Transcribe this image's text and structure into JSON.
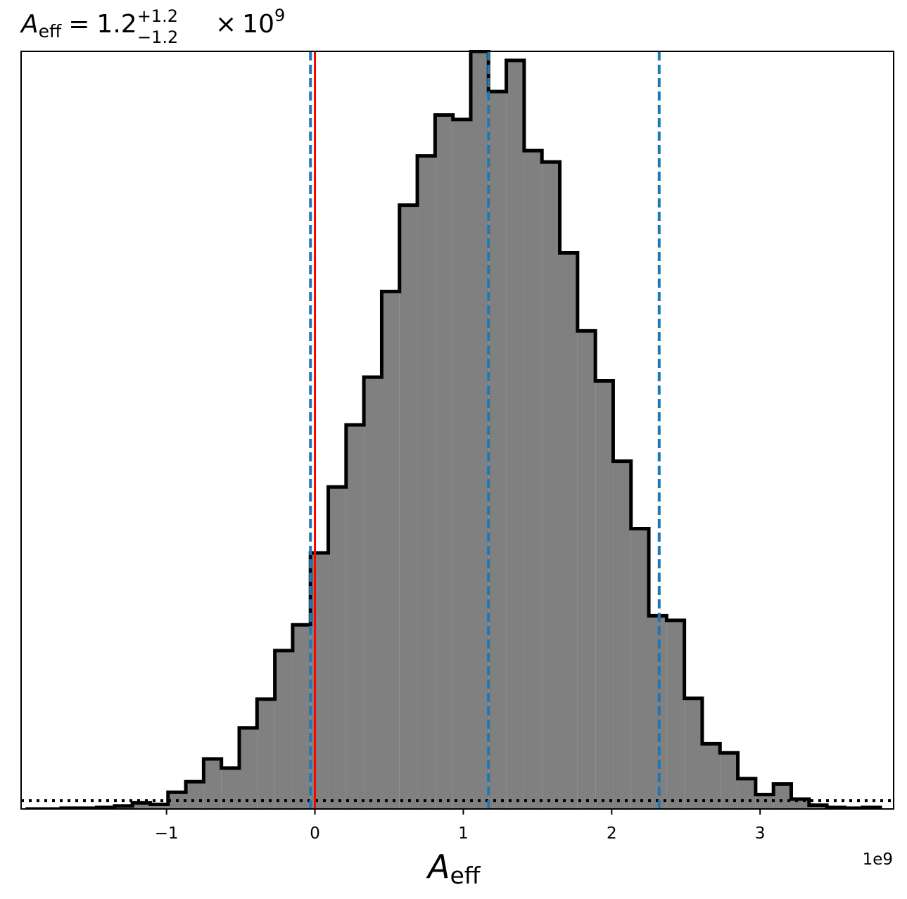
{
  "chart_data": {
    "type": "histogram",
    "title": {
      "symbol": "A",
      "subscript": "eff",
      "equals": "=",
      "value": "1.2",
      "upper_error": "+1.2",
      "lower_error": "−1.2",
      "times": "×",
      "base": "10",
      "exponent": "9"
    },
    "xlabel": {
      "symbol": "A",
      "subscript": "eff"
    },
    "offset_label": "1e9",
    "xlim": [
      -1.98,
      3.9
    ],
    "ylim": [
      0,
      1.0
    ],
    "xticks": [
      -1,
      0,
      1,
      2,
      3
    ],
    "xtick_labels": [
      "−1",
      "0",
      "1",
      "2",
      "3"
    ],
    "bin_edges": [
      -1.95,
      -1.83,
      -1.71,
      -1.59,
      -1.47,
      -1.35,
      -1.23,
      -1.11,
      -0.99,
      -0.87,
      -0.75,
      -0.63,
      -0.51,
      -0.39,
      -0.27,
      -0.15,
      -0.03,
      0.09,
      0.21,
      0.33,
      0.45,
      0.57,
      0.69,
      0.81,
      0.93,
      1.05,
      1.17,
      1.29,
      1.41,
      1.53,
      1.65,
      1.77,
      1.89,
      2.01,
      2.13,
      2.25,
      2.37,
      2.49,
      2.61,
      2.73,
      2.85,
      2.97,
      3.09,
      3.21,
      3.33,
      3.45,
      3.57,
      3.69,
      3.81
    ],
    "counts": [
      0.0,
      0.0,
      0.001,
      0.001,
      0.002,
      0.004,
      0.008,
      0.006,
      0.022,
      0.036,
      0.066,
      0.054,
      0.107,
      0.145,
      0.209,
      0.243,
      0.338,
      0.425,
      0.507,
      0.57,
      0.683,
      0.797,
      0.862,
      0.916,
      0.91,
      1.0,
      0.947,
      0.988,
      0.869,
      0.854,
      0.734,
      0.631,
      0.565,
      0.459,
      0.37,
      0.255,
      0.249,
      0.146,
      0.086,
      0.074,
      0.04,
      0.019,
      0.033,
      0.013,
      0.005,
      0.002,
      0.001,
      0.002
    ],
    "hist_fill": "#808080",
    "hist_edge": "#000000",
    "vlines_dashed": [
      -0.03,
      1.17,
      2.32
    ],
    "vline_dashed_color": "#1f77b4",
    "vline_solid": 0,
    "vline_solid_color": "#ff0000",
    "hline_dotted": 0.011,
    "hline_dotted_color": "#000000"
  }
}
